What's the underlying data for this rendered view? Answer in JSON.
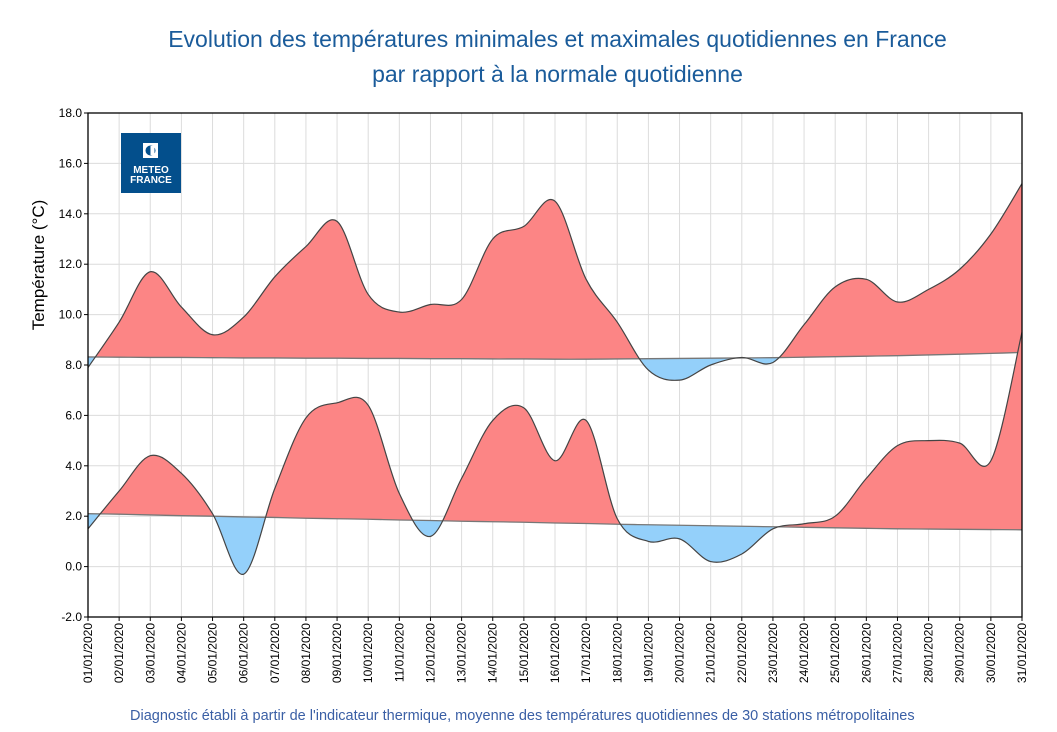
{
  "title_line1": "Evolution des températures minimales et maximales quotidiennes en France",
  "title_line2": "par rapport à la normale quotidienne",
  "footer": "Diagnostic établi à partir de l'indicateur thermique, moyenne des températures quotidiennes de 30 stations métropolitaines",
  "logo": {
    "text_line1": "METEO",
    "text_line2": "FRANCE",
    "color": "#034f8c"
  },
  "colors": {
    "above_normal": "#fc8585",
    "below_normal": "#94d0fa",
    "title": "#1a5b9a"
  },
  "chart_data": {
    "type": "area",
    "title": "Evolution des températures minimales et maximales quotidiennes en France par rapport à la normale quotidienne",
    "xlabel": "",
    "ylabel": "Température (°C)",
    "ylim": [
      -2,
      18
    ],
    "yticks": [
      "-2.0",
      "0.0",
      "2.0",
      "4.0",
      "6.0",
      "8.0",
      "10.0",
      "12.0",
      "14.0",
      "16.0",
      "18.0"
    ],
    "grid": true,
    "categories": [
      "01/01/2020",
      "02/01/2020",
      "03/01/2020",
      "04/01/2020",
      "05/01/2020",
      "06/01/2020",
      "07/01/2020",
      "08/01/2020",
      "09/01/2020",
      "10/01/2020",
      "11/01/2020",
      "12/01/2020",
      "13/01/2020",
      "14/01/2020",
      "15/01/2020",
      "16/01/2020",
      "17/01/2020",
      "18/01/2020",
      "19/01/2020",
      "20/01/2020",
      "21/01/2020",
      "22/01/2020",
      "23/01/2020",
      "24/01/2020",
      "25/01/2020",
      "26/01/2020",
      "27/01/2020",
      "28/01/2020",
      "29/01/2020",
      "30/01/2020",
      "31/01/2020"
    ],
    "series": [
      {
        "values": [
          7.9,
          9.7,
          11.7,
          10.3,
          9.2,
          9.9,
          11.5,
          12.7,
          13.7,
          10.8,
          10.1,
          10.4,
          10.6,
          13.0,
          13.5,
          14.5,
          11.4,
          9.7,
          7.8,
          7.4,
          8.0,
          8.3,
          8.1,
          9.6,
          11.1,
          11.4,
          10.5,
          11.0,
          11.8,
          13.2,
          15.2
        ]
      },
      {
        "values": [
          8.32,
          8.31,
          8.3,
          8.3,
          8.29,
          8.28,
          8.28,
          8.27,
          8.27,
          8.26,
          8.26,
          8.25,
          8.25,
          8.24,
          8.24,
          8.23,
          8.23,
          8.24,
          8.25,
          8.26,
          8.27,
          8.28,
          8.29,
          8.31,
          8.33,
          8.35,
          8.37,
          8.4,
          8.43,
          8.46,
          8.5
        ]
      },
      {
        "values": [
          1.5,
          3.0,
          4.4,
          3.7,
          2.1,
          -0.3,
          3.1,
          5.9,
          6.5,
          6.4,
          2.9,
          1.2,
          3.5,
          5.8,
          6.3,
          4.2,
          5.8,
          1.9,
          1.0,
          1.1,
          0.2,
          0.5,
          1.5,
          1.7,
          2.0,
          3.5,
          4.8,
          5.0,
          4.9,
          4.2,
          9.3
        ]
      },
      {
        "values": [
          2.1,
          2.08,
          2.05,
          2.02,
          2.0,
          1.97,
          1.95,
          1.92,
          1.9,
          1.88,
          1.85,
          1.83,
          1.8,
          1.78,
          1.76,
          1.73,
          1.71,
          1.68,
          1.66,
          1.64,
          1.62,
          1.6,
          1.58,
          1.56,
          1.54,
          1.52,
          1.5,
          1.49,
          1.48,
          1.47,
          1.46
        ]
      }
    ]
  }
}
